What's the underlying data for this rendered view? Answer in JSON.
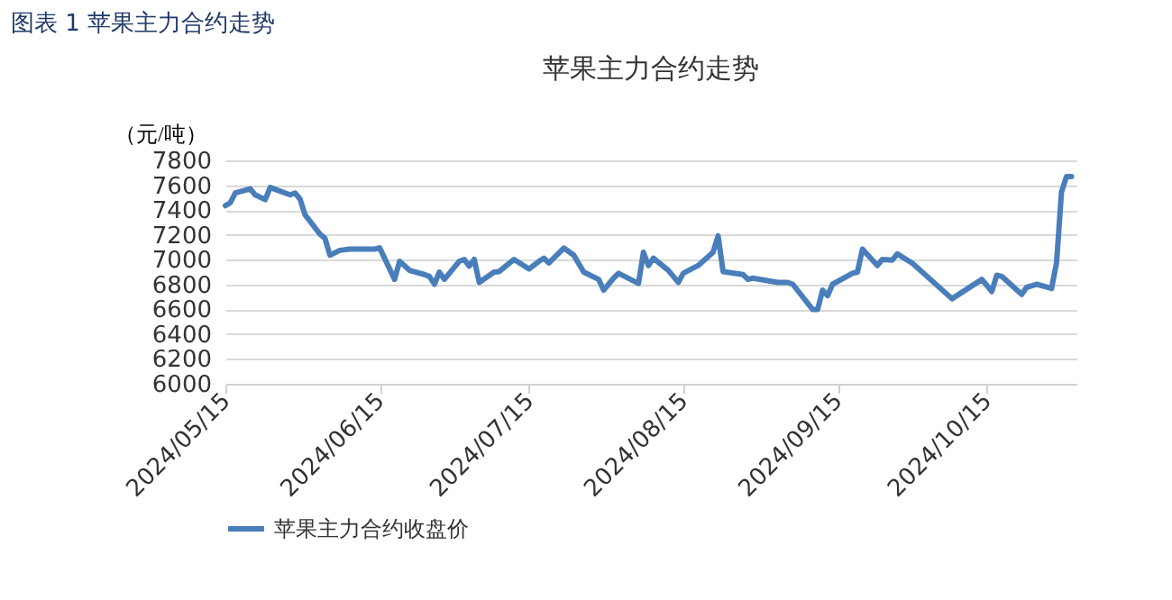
{
  "chart_data": {
    "type": "line",
    "title": "苹果主力合约走势",
    "ylabel": "（元/吨）",
    "annotations": [
      "图表 1  苹果主力合约走势"
    ],
    "x": [
      "2024-05-15",
      "2024-05-16",
      "2024-05-17",
      "2024-05-20",
      "2024-05-21",
      "2024-05-23",
      "2024-05-24",
      "2024-05-28",
      "2024-05-29",
      "2024-05-30",
      "2024-05-31",
      "2024-06-03",
      "2024-06-04",
      "2024-06-05",
      "2024-06-07",
      "2024-06-09",
      "2024-06-14",
      "2024-06-15",
      "2024-06-18",
      "2024-06-19",
      "2024-06-21",
      "2024-06-24",
      "2024-06-25",
      "2024-06-26",
      "2024-06-27",
      "2024-06-28",
      "2024-07-01",
      "2024-07-02",
      "2024-07-03",
      "2024-07-04",
      "2024-07-05",
      "2024-07-08",
      "2024-07-09",
      "2024-07-12",
      "2024-07-15",
      "2024-07-17",
      "2024-07-18",
      "2024-07-19",
      "2024-07-22",
      "2024-07-24",
      "2024-07-26",
      "2024-07-29",
      "2024-07-30",
      "2024-08-01",
      "2024-08-02",
      "2024-08-06",
      "2024-08-07",
      "2024-08-08",
      "2024-08-09",
      "2024-08-12",
      "2024-08-14",
      "2024-08-15",
      "2024-08-18",
      "2024-08-21",
      "2024-08-22",
      "2024-08-23",
      "2024-08-27",
      "2024-08-28",
      "2024-08-29",
      "2024-09-03",
      "2024-09-05",
      "2024-09-06",
      "2024-09-10",
      "2024-09-11",
      "2024-09-12",
      "2024-09-13",
      "2024-09-14",
      "2024-09-18",
      "2024-09-19",
      "2024-09-20",
      "2024-09-23",
      "2024-09-24",
      "2024-09-26",
      "2024-09-27",
      "2024-09-30",
      "2024-10-08",
      "2024-10-14",
      "2024-10-16",
      "2024-10-17",
      "2024-10-18",
      "2024-10-22",
      "2024-10-23",
      "2024-10-25",
      "2024-10-28",
      "2024-10-29",
      "2024-10-30",
      "2024-10-31",
      "2024-11-01"
    ],
    "series": [
      {
        "name": "苹果主力合约收盘价",
        "color": "#4a7ebb",
        "values": [
          7435,
          7459,
          7537,
          7571,
          7522,
          7483,
          7581,
          7522,
          7537,
          7488,
          7362,
          7206,
          7173,
          7036,
          7075,
          7085,
          7085,
          7095,
          6841,
          6987,
          6914,
          6880,
          6865,
          6802,
          6900,
          6841,
          6987,
          7002,
          6948,
          7002,
          6817,
          6900,
          6904,
          7002,
          6925,
          6987,
          7012,
          6973,
          7094,
          7036,
          6900,
          6841,
          6754,
          6851,
          6890,
          6808,
          7060,
          6953,
          7012,
          6914,
          6817,
          6890,
          6953,
          7060,
          7192,
          6904,
          6880,
          6841,
          6851,
          6817,
          6817,
          6802,
          6598,
          6598,
          6754,
          6710,
          6802,
          6890,
          6900,
          7085,
          6953,
          7002,
          6997,
          7046,
          6973,
          6685,
          6841,
          6744,
          6875,
          6865,
          6720,
          6778,
          6802,
          6768,
          6973,
          7546,
          7669,
          7669
        ]
      }
    ],
    "xlim": [
      "2024-05-15",
      "2024-11-02"
    ],
    "xticks": [
      {
        "value": "2024-05-15",
        "label": "2024/05/15"
      },
      {
        "value": "2024-06-15",
        "label": "2024/06/15"
      },
      {
        "value": "2024-07-15",
        "label": "2024/07/15"
      },
      {
        "value": "2024-08-15",
        "label": "2024/08/15"
      },
      {
        "value": "2024-09-15",
        "label": "2024/09/15"
      },
      {
        "value": "2024-10-15",
        "label": "2024/10/15"
      }
    ],
    "ylim": [
      6000,
      7800
    ],
    "yticks": [
      6000,
      6200,
      6400,
      6600,
      6800,
      7000,
      7200,
      7400,
      7600,
      7800
    ],
    "grid": "y",
    "legend": "bottom",
    "marker": "none",
    "line_style": "solid"
  }
}
